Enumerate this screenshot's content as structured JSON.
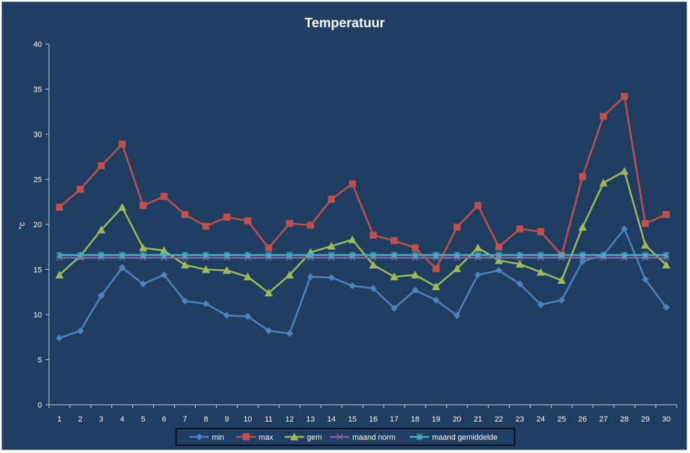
{
  "chart_data": {
    "type": "line",
    "title": "Temperatuur",
    "xlabel": "",
    "ylabel": "°c",
    "ylim": [
      0,
      40
    ],
    "yticks": [
      0,
      5,
      10,
      15,
      20,
      25,
      30,
      35,
      40
    ],
    "categories": [
      "1",
      "2",
      "3",
      "4",
      "5",
      "6",
      "7",
      "8",
      "9",
      "10",
      "11",
      "12",
      "13",
      "14",
      "15",
      "16",
      "17",
      "18",
      "19",
      "20",
      "21",
      "22",
      "23",
      "24",
      "25",
      "26",
      "27",
      "28",
      "29",
      "30"
    ],
    "grid": false,
    "legend_position": "bottom",
    "series": [
      {
        "name": "min",
        "color": "#4f81bd",
        "marker": "diamond",
        "values": [
          7.4,
          8.2,
          12.1,
          15.2,
          13.4,
          14.4,
          11.5,
          11.2,
          9.9,
          9.8,
          8.2,
          7.9,
          14.2,
          14.1,
          13.2,
          12.9,
          10.7,
          12.7,
          11.6,
          9.9,
          14.4,
          14.9,
          13.4,
          11.1,
          11.6,
          15.9,
          16.6,
          19.5,
          13.9,
          10.8
        ]
      },
      {
        "name": "max",
        "color": "#c0504d",
        "marker": "square",
        "values": [
          21.9,
          23.9,
          26.5,
          28.9,
          22.1,
          23.1,
          21.1,
          19.8,
          20.8,
          20.4,
          17.4,
          20.1,
          19.9,
          22.8,
          24.5,
          18.8,
          18.2,
          17.4,
          15.1,
          19.7,
          22.1,
          17.5,
          19.5,
          19.2,
          16.6,
          25.3,
          32.0,
          34.2,
          20.1,
          21.1
        ]
      },
      {
        "name": "gem",
        "color": "#9bbb59",
        "marker": "triangle",
        "values": [
          14.4,
          16.5,
          19.4,
          21.9,
          17.4,
          17.1,
          15.5,
          15.0,
          14.9,
          14.2,
          12.4,
          14.4,
          16.9,
          17.6,
          18.3,
          15.5,
          14.2,
          14.4,
          13.1,
          15.1,
          17.4,
          16.0,
          15.6,
          14.7,
          13.8,
          19.7,
          24.6,
          25.9,
          17.7,
          15.5
        ]
      },
      {
        "name": "maand norm",
        "color": "#8064a2",
        "marker": "x",
        "values": [
          16.3,
          16.3,
          16.3,
          16.3,
          16.3,
          16.3,
          16.3,
          16.3,
          16.3,
          16.3,
          16.3,
          16.3,
          16.3,
          16.3,
          16.3,
          16.3,
          16.3,
          16.3,
          16.3,
          16.3,
          16.3,
          16.3,
          16.3,
          16.3,
          16.3,
          16.3,
          16.3,
          16.3,
          16.3,
          16.3
        ]
      },
      {
        "name": "maand gemiddelde",
        "color": "#4bacc6",
        "marker": "star",
        "values": [
          16.6,
          16.6,
          16.6,
          16.6,
          16.6,
          16.6,
          16.6,
          16.6,
          16.6,
          16.6,
          16.6,
          16.6,
          16.6,
          16.6,
          16.6,
          16.6,
          16.6,
          16.6,
          16.6,
          16.6,
          16.6,
          16.6,
          16.6,
          16.6,
          16.6,
          16.6,
          16.6,
          16.6,
          16.6,
          16.6
        ]
      }
    ]
  }
}
